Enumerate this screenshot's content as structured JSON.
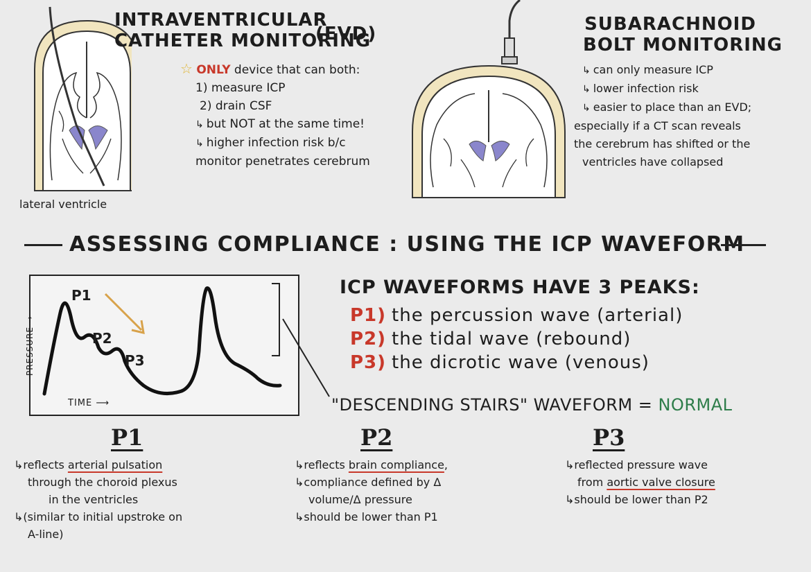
{
  "evd": {
    "title_line1": "INTRAVENTRICULAR",
    "title_line2": "CATHETER MONITORING",
    "title_abbrev": "(EVD)",
    "star_prefix": "ONLY",
    "star_text": " device that can both:",
    "item1": "1) measure ICP",
    "item2": "2) drain CSF",
    "note1": "but NOT at the same time!",
    "note2_line1": "higher infection risk b/c",
    "note2_line2": "monitor penetrates cerebrum",
    "brain_label": "lateral ventricle"
  },
  "bolt": {
    "title_line1": "SUBARACHNOID",
    "title_line2": "BOLT MONITORING",
    "note1": "can only measure ICP",
    "note2": "lower infection risk",
    "note3_line1": "easier to place than an EVD;",
    "note3_line2": "especially if a CT scan reveals",
    "note3_line3": "the cerebrum has shifted or the",
    "note3_line4": "ventricles have collapsed"
  },
  "section_title": "ASSESSING COMPLIANCE : USING THE ICP WAVEFORM",
  "graph": {
    "ylabel": "PRESSURE",
    "xlabel": "TIME",
    "p1": "P1",
    "p2": "P2",
    "p3": "P3"
  },
  "peaks": {
    "heading": "ICP WAVEFORMS HAVE 3 PEAKS:",
    "p1_label": "P1)",
    "p1_text": "the percussion wave (arterial)",
    "p2_label": "P2)",
    "p2_text": "the tidal wave (rebound)",
    "p3_label": "P3)",
    "p3_text": "the dicrotic wave (venous)",
    "stairs_prefix": "\"DESCENDING STAIRS\" WAVEFORM = ",
    "stairs_value": "NORMAL"
  },
  "columns": {
    "p1": {
      "heading": "P1",
      "line1_prefix": "reflects ",
      "line1_underlined": "arterial pulsation",
      "line2": "through the choroid plexus",
      "line3": "in the ventricles",
      "line4": "(similar to initial upstroke on",
      "line5": "A-line)"
    },
    "p2": {
      "heading": "P2",
      "line1_prefix": "reflects ",
      "line1_underlined": "brain compliance",
      "line1_suffix": ",",
      "line2": "compliance defined by Δ",
      "line3": "volume/Δ pressure",
      "line4": "should be lower than P1"
    },
    "p3": {
      "heading": "P3",
      "line1": "reflected pressure wave",
      "line2_prefix": "from ",
      "line2_underlined": "aortic valve closure",
      "line3": "should be lower than P2"
    }
  },
  "colors": {
    "red": "#c8382a",
    "green": "#2e7d4a",
    "ventricle": "#8a86cc",
    "arrow": "#d8a24a",
    "skull": "#f1e5bf"
  }
}
